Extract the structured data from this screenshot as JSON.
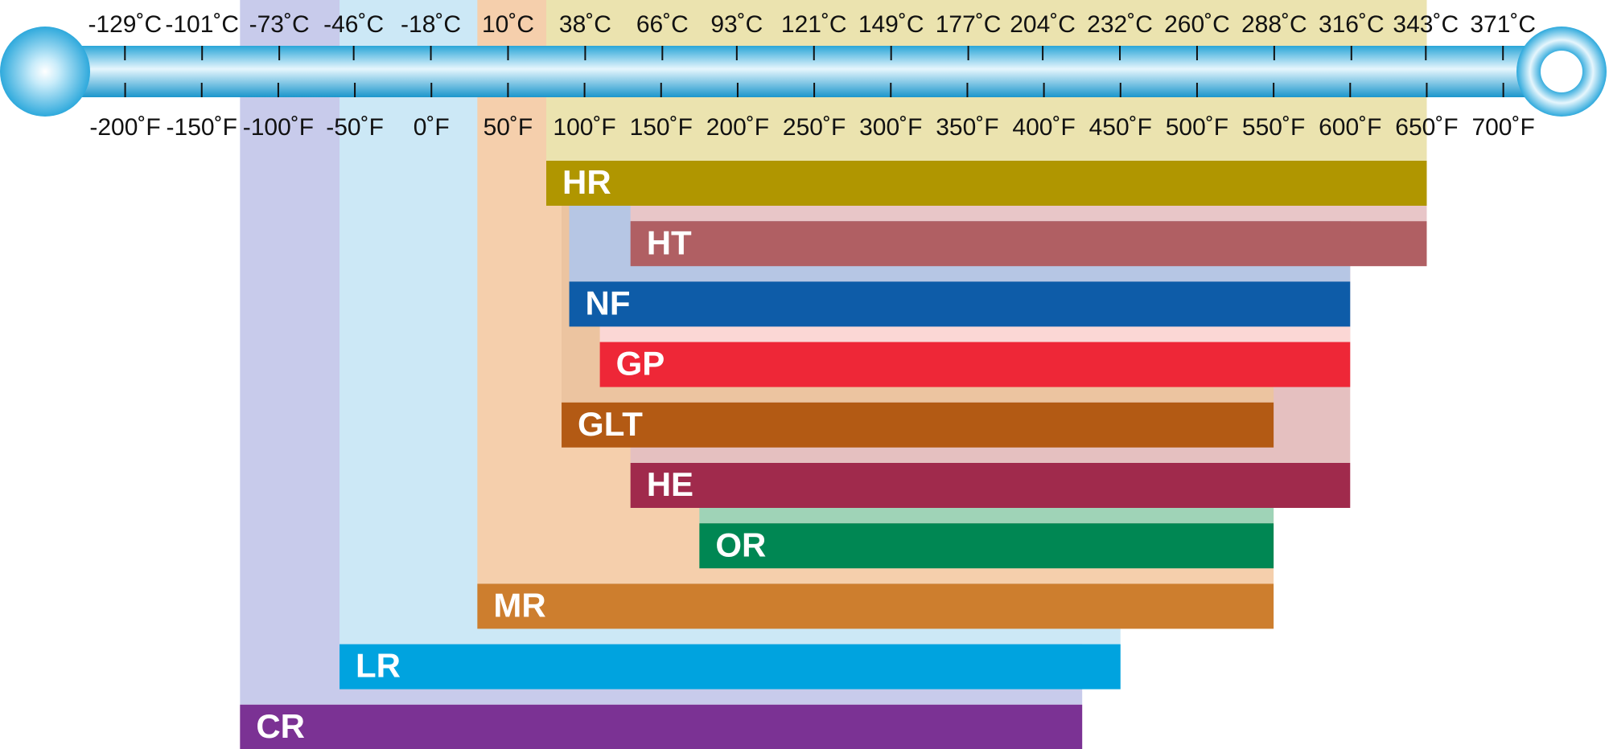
{
  "chart_data": {
    "type": "range-bar",
    "categories": [
      "HR",
      "HT",
      "NF",
      "GP",
      "GLT",
      "HE",
      "OR",
      "MR",
      "LR",
      "CR"
    ],
    "low": [
      75,
      130,
      90,
      110,
      85,
      130,
      175,
      30,
      -60,
      -125
    ],
    "high": [
      650,
      650,
      600,
      600,
      550,
      600,
      550,
      550,
      450,
      425
    ],
    "colors": [
      "#b09600",
      "#b05f63",
      "#0e5ca8",
      "#ee2737",
      "#b35a14",
      "#a02a4c",
      "#008753",
      "#cd7e2e",
      "#00a3df",
      "#7b3294"
    ],
    "light_colors": [
      "#ebe3af",
      "#e8c6c8",
      "#b6c6e4",
      "#fbd7d5",
      "#ecc4a0",
      "#e5c0c0",
      "#9fd3b7",
      "#f5cfac",
      "#cce8f6",
      "#c8cbeb"
    ],
    "xlim": [
      -250,
      750
    ],
    "xticks": [
      {
        "value": -200,
        "label": "-200˚F"
      },
      {
        "value": -150,
        "label": "-150˚F"
      },
      {
        "value": -100,
        "label": "-100˚F"
      },
      {
        "value": -50,
        "label": "-50˚F"
      },
      {
        "value": 0,
        "label": "0˚F"
      },
      {
        "value": 50,
        "label": "50˚F"
      },
      {
        "value": 100,
        "label": "100˚F"
      },
      {
        "value": 150,
        "label": "150˚F"
      },
      {
        "value": 200,
        "label": "200˚F"
      },
      {
        "value": 250,
        "label": "250˚F"
      },
      {
        "value": 300,
        "label": "300˚F"
      },
      {
        "value": 350,
        "label": "350˚F"
      },
      {
        "value": 400,
        "label": "400˚F"
      },
      {
        "value": 450,
        "label": "450˚F"
      },
      {
        "value": 500,
        "label": "500˚F"
      },
      {
        "value": 550,
        "label": "550˚F"
      },
      {
        "value": 600,
        "label": "600˚F"
      },
      {
        "value": 650,
        "label": "650˚F"
      },
      {
        "value": 700,
        "label": "700˚F"
      }
    ],
    "x2lim": [
      -156.7,
      398.9
    ],
    "x2ticks": [
      {
        "value": -129,
        "label": "-129˚C"
      },
      {
        "value": -101,
        "label": "-101˚C"
      },
      {
        "value": -73,
        "label": "-73˚C"
      },
      {
        "value": -46,
        "label": "-46˚C"
      },
      {
        "value": -18,
        "label": "-18˚C"
      },
      {
        "value": 10,
        "label": "10˚C"
      },
      {
        "value": 38,
        "label": "38˚C"
      },
      {
        "value": 66,
        "label": "66˚C"
      },
      {
        "value": 93,
        "label": "93˚C"
      },
      {
        "value": 121,
        "label": "121˚C"
      },
      {
        "value": 149,
        "label": "149˚C"
      },
      {
        "value": 177,
        "label": "177˚C"
      },
      {
        "value": 204,
        "label": "204˚C"
      },
      {
        "value": 232,
        "label": "232˚C"
      },
      {
        "value": 260,
        "label": "260˚C"
      },
      {
        "value": 288,
        "label": "288˚C"
      },
      {
        "value": 316,
        "label": "316˚C"
      },
      {
        "value": 343,
        "label": "343˚C"
      },
      {
        "value": 371,
        "label": "371˚C"
      }
    ]
  }
}
